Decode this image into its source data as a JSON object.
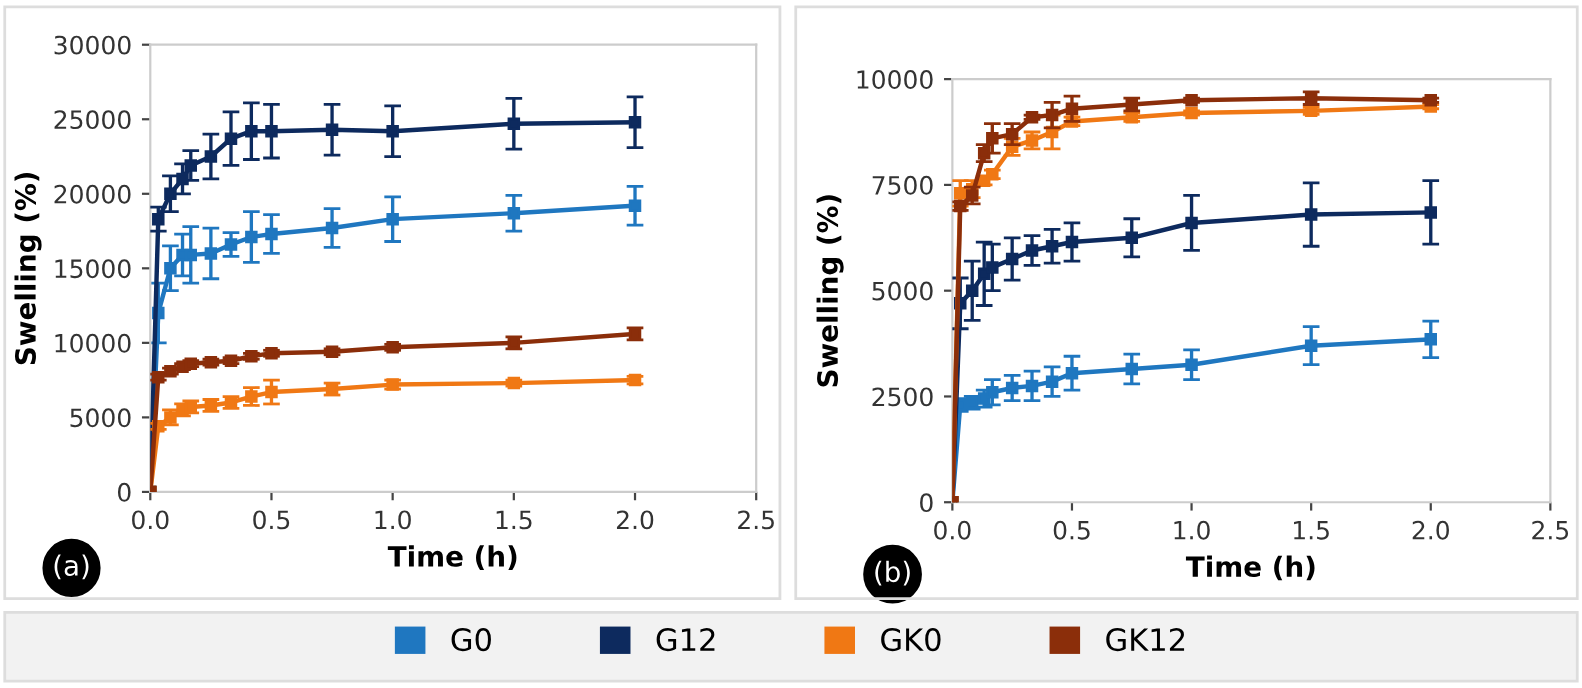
{
  "chart_data": [
    {
      "type": "line",
      "xlabel": "Time (h)",
      "ylabel": "Swelling (%)",
      "annotations": [
        "(a)"
      ],
      "x": [
        0,
        0.033,
        0.083,
        0.133,
        0.167,
        0.25,
        0.333,
        0.417,
        0.5,
        0.75,
        1.0,
        1.5,
        2.0
      ],
      "xlim": [
        0,
        2.5
      ],
      "xticks": [
        {
          "value": 0,
          "label": "0.0"
        },
        0.5,
        {
          "value": 1,
          "label": "1.0"
        },
        1.5,
        {
          "value": 2,
          "label": "2.0"
        },
        2.5
      ],
      "ylim": [
        0,
        30000
      ],
      "yticks": [
        0,
        5000,
        10000,
        15000,
        20000,
        25000,
        30000
      ],
      "grid": false,
      "legend": "bottom",
      "marker": "square",
      "line_style": "solid",
      "series": [
        {
          "name": "G0",
          "color": "#1f77c0",
          "values": [
            0,
            12000,
            15000,
            15900,
            15900,
            16000,
            16600,
            17100,
            17300,
            17700,
            18300,
            18700,
            19200
          ],
          "errors": [
            null,
            2000,
            1500,
            1400,
            1900,
            1700,
            800,
            1700,
            1300,
            1300,
            1500,
            1200,
            1300
          ]
        },
        {
          "name": "G12",
          "color": "#0d2a5e",
          "values": [
            0,
            18300,
            20000,
            21000,
            21900,
            22500,
            23700,
            24200,
            24200,
            24300,
            24200,
            24700,
            24800
          ],
          "errors": [
            null,
            800,
            1200,
            1000,
            1000,
            1500,
            1800,
            1900,
            1800,
            1700,
            1700,
            1700,
            1700
          ]
        },
        {
          "name": "GK0",
          "color": "#f07814",
          "values": [
            0,
            4400,
            5000,
            5500,
            5700,
            5800,
            6000,
            6400,
            6700,
            6900,
            7200,
            7300,
            7500
          ],
          "errors": [
            null,
            200,
            500,
            400,
            400,
            400,
            400,
            600,
            800,
            400,
            300,
            200,
            250
          ]
        },
        {
          "name": "GK12",
          "color": "#8b2e0a",
          "values": [
            0,
            7700,
            8100,
            8400,
            8600,
            8700,
            8800,
            9100,
            9300,
            9400,
            9700,
            10000,
            10600
          ],
          "errors": [
            null,
            200,
            200,
            200,
            200,
            200,
            200,
            200,
            200,
            200,
            200,
            400,
            400
          ]
        }
      ]
    },
    {
      "type": "line",
      "xlabel": "Time (h)",
      "ylabel": "Swelling (%)",
      "annotations": [
        "(b)"
      ],
      "x": [
        0,
        0.033,
        0.083,
        0.133,
        0.167,
        0.25,
        0.333,
        0.417,
        0.5,
        0.75,
        1.0,
        1.5,
        2.0
      ],
      "xlim": [
        0,
        2.5
      ],
      "xticks": [
        {
          "value": 0,
          "label": "0.0"
        },
        0.5,
        {
          "value": 1,
          "label": "1.0"
        },
        1.5,
        {
          "value": 2,
          "label": "2.0"
        },
        2.5
      ],
      "ylim": [
        0,
        10000
      ],
      "yticks": [
        0,
        2500,
        5000,
        7500,
        10000
      ],
      "grid": false,
      "legend": "bottom",
      "marker": "square",
      "line_style": "solid",
      "series": [
        {
          "name": "G0",
          "color": "#1f77c0",
          "values": [
            0,
            2300,
            2350,
            2450,
            2600,
            2700,
            2750,
            2850,
            3050,
            3150,
            3250,
            3700,
            3850
          ],
          "errors": [
            null,
            150,
            150,
            200,
            300,
            300,
            350,
            350,
            400,
            350,
            350,
            450,
            430
          ]
        },
        {
          "name": "G12",
          "color": "#0d2a5e",
          "values": [
            0,
            4700,
            5000,
            5400,
            5550,
            5750,
            5950,
            6050,
            6150,
            6250,
            6600,
            6800,
            6850
          ],
          "errors": [
            null,
            600,
            700,
            750,
            550,
            500,
            350,
            400,
            450,
            450,
            650,
            750,
            750
          ]
        },
        {
          "name": "GK0",
          "color": "#f07814",
          "values": [
            0,
            7300,
            7400,
            7600,
            7750,
            8400,
            8550,
            8750,
            9000,
            9100,
            9200,
            9250,
            9350
          ],
          "errors": [
            null,
            300,
            200,
            100,
            100,
            200,
            200,
            400,
            100,
            100,
            50,
            80,
            50
          ]
        },
        {
          "name": "GK12",
          "color": "#8b2e0a",
          "values": [
            0,
            7000,
            7250,
            8250,
            8600,
            8700,
            9100,
            9150,
            9300,
            9400,
            9500,
            9550,
            9500
          ],
          "errors": [
            null,
            100,
            200,
            200,
            350,
            250,
            50,
            300,
            300,
            150,
            50,
            150,
            50
          ]
        }
      ]
    }
  ]
}
